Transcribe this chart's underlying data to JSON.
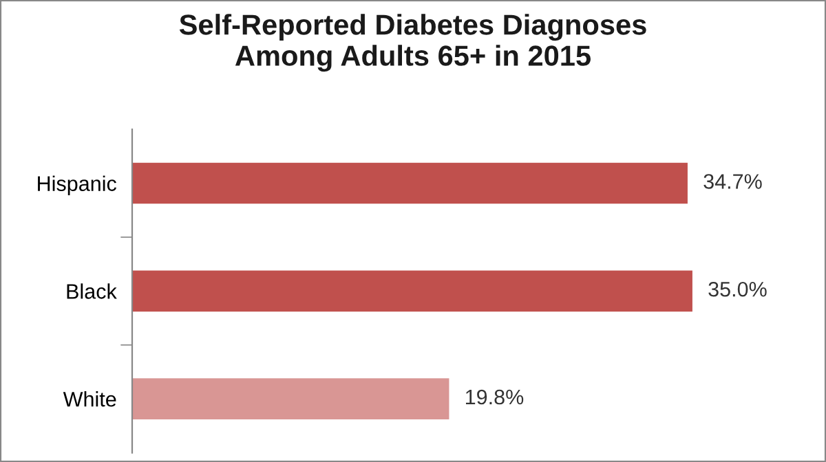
{
  "chart_data": {
    "type": "bar",
    "orientation": "horizontal",
    "title": "Self-Reported Diabetes Diagnoses\nAmong Adults 65+ in 2015",
    "categories": [
      "Hispanic",
      "Black",
      "White"
    ],
    "values": [
      34.7,
      35.0,
      19.8
    ],
    "colors": [
      "#c0504d",
      "#c0504d",
      "#d99694"
    ],
    "value_labels": [
      "34.7%",
      "35.0%",
      "19.8%"
    ],
    "grid": false,
    "legend": false,
    "tick_labels": "y"
  }
}
